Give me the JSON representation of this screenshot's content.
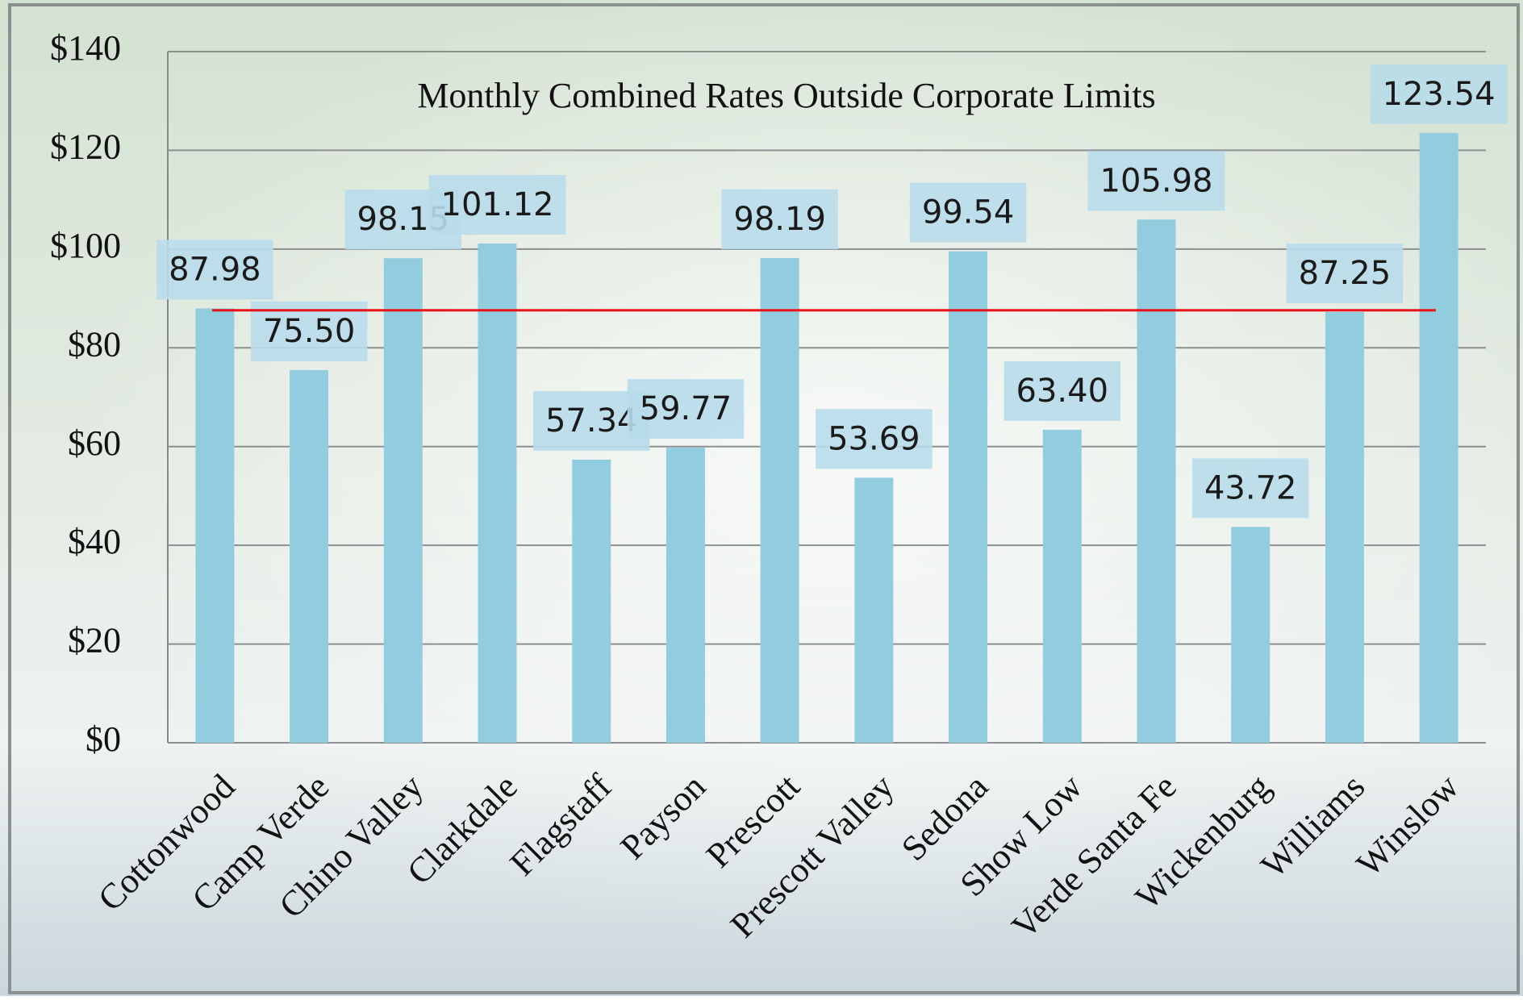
{
  "chart_data": {
    "type": "bar",
    "title": "Monthly Combined Rates Outside Corporate Limits",
    "categories": [
      "Cottonwood",
      "Camp Verde",
      "Chino Valley",
      "Clarkdale",
      "Flagstaff",
      "Payson",
      "Prescott",
      "Prescott Valley",
      "Sedona",
      "Show Low",
      "Verde Santa Fe",
      "Wickenburg",
      "Williams",
      "Winslow"
    ],
    "values": [
      87.98,
      75.5,
      98.15,
      101.12,
      57.34,
      59.77,
      98.19,
      53.69,
      99.54,
      63.4,
      105.98,
      43.72,
      87.25,
      123.54
    ],
    "value_labels": [
      "87.98",
      "75.50",
      "98.15",
      "101.12",
      "57.34",
      "59.77",
      "98.19",
      "53.69",
      "99.54",
      "63.40",
      "105.98",
      "43.72",
      "87.25",
      "123.54"
    ],
    "color": "#92cddf",
    "ylim": [
      0,
      140
    ],
    "yticks": [
      {
        "value": 0,
        "label": "$0"
      },
      {
        "value": 20,
        "label": "$20"
      },
      {
        "value": 40,
        "label": "$40"
      },
      {
        "value": 60,
        "label": "$60"
      },
      {
        "value": 80,
        "label": "$80"
      },
      {
        "value": 100,
        "label": "$100"
      },
      {
        "value": 120,
        "label": "$120"
      },
      {
        "value": 140,
        "label": "$140"
      }
    ],
    "grid": true,
    "reference_line": {
      "value": 87.6,
      "color": "#e8141b"
    }
  }
}
